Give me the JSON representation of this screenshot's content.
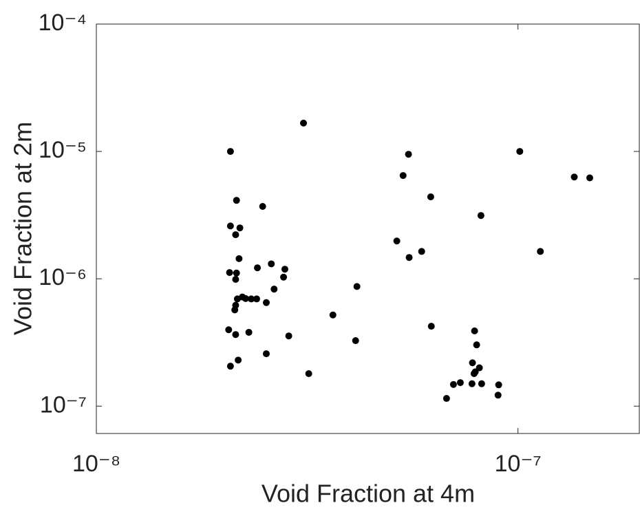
{
  "chart_data": {
    "type": "scatter",
    "x_label": "Void Fraction at 4m",
    "y_label": "Void Fraction at 2m",
    "x_scale": "log",
    "y_scale": "log",
    "color": "#000000",
    "xlim": [
      1e-08,
      1.94e-07
    ],
    "ylim": [
      6.1e-08,
      0.0001
    ],
    "xticks": [
      {
        "value": 1e-08,
        "label": "10⁻⁸"
      },
      {
        "value": 1e-07,
        "label": "10⁻⁷"
      }
    ],
    "yticks": [
      {
        "value": 1e-07,
        "label": "10⁻⁷"
      },
      {
        "value": 1e-06,
        "label": "10⁻⁶"
      },
      {
        "value": 1e-05,
        "label": "10⁻⁵"
      },
      {
        "value": 0.0001,
        "label": "10⁻⁴"
      }
    ],
    "x": [
      2.08e-08,
      3.1e-08,
      5.5e-08,
      5.34e-08,
      1.01e-07,
      1.36e-07,
      1.48e-07,
      6.21e-08,
      2.15e-08,
      2.48e-08,
      8.17e-08,
      2.08e-08,
      2.19e-08,
      2.14e-08,
      5.16e-08,
      5.91e-08,
      5.52e-08,
      1.13e-07,
      2.18e-08,
      2.6e-08,
      2.41e-08,
      2.8e-08,
      2.07e-08,
      2.15e-08,
      2.78e-08,
      2.14e-08,
      4.15e-08,
      2.64e-08,
      2.22e-08,
      2.26e-08,
      2.33e-08,
      2.4e-08,
      2.16e-08,
      2.53e-08,
      2.14e-08,
      2.13e-08,
      3.64e-08,
      6.23e-08,
      2.06e-08,
      7.89e-08,
      2.3e-08,
      2.14e-08,
      2.86e-08,
      4.12e-08,
      7.98e-08,
      2.53e-08,
      2.17e-08,
      7.8e-08,
      2.08e-08,
      8.1e-08,
      7.92e-08,
      7.87e-08,
      3.19e-08,
      7.3e-08,
      7.03e-08,
      7.78e-08,
      8.2e-08,
      9e-08,
      6.77e-08,
      8.97e-08
    ],
    "values": [
      1e-05,
      1.67e-05,
      9.5e-06,
      6.47e-06,
      1e-05,
      6.3e-06,
      6.2e-06,
      4.4e-06,
      4.13e-06,
      3.7e-06,
      3.14e-06,
      2.6e-06,
      2.51e-06,
      2.22e-06,
      1.98e-06,
      1.64e-06,
      1.47e-06,
      1.64e-06,
      1.44e-06,
      1.31e-06,
      1.22e-06,
      1.19e-06,
      1.12e-06,
      1.11e-06,
      1.03e-06,
      9.9e-07,
      8.7e-07,
      8.3e-07,
      7.2e-07,
      7e-07,
      6.95e-07,
      6.95e-07,
      6.95e-07,
      6.5e-07,
      6.2e-07,
      5.7e-07,
      5.2e-07,
      4.24e-07,
      3.98e-07,
      3.9e-07,
      3.8e-07,
      3.65e-07,
      3.56e-07,
      3.27e-07,
      3.03e-07,
      2.58e-07,
      2.3e-07,
      2.19e-07,
      2.06e-07,
      2e-07,
      1.86e-07,
      1.8e-07,
      1.8e-07,
      1.53e-07,
      1.48e-07,
      1.5e-07,
      1.5e-07,
      1.47e-07,
      1.15e-07,
      1.22e-07
    ]
  }
}
